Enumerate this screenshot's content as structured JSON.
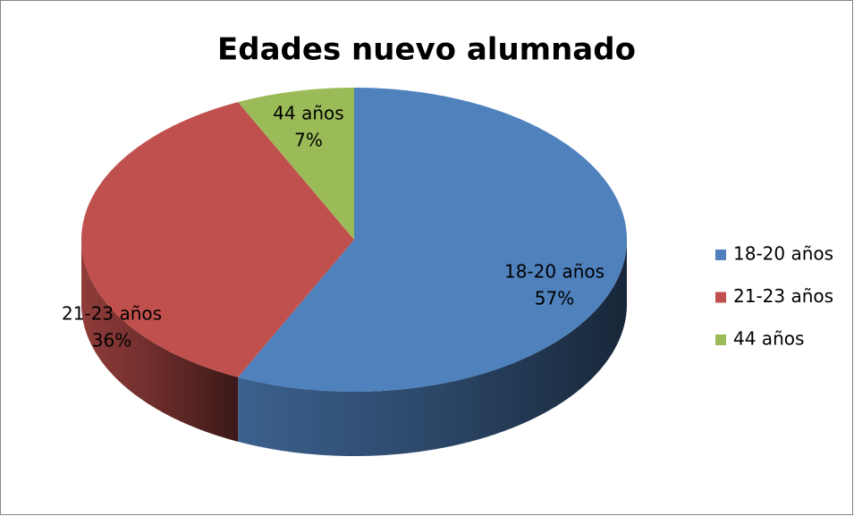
{
  "chart_data": {
    "type": "pie3d",
    "title": "Edades nuevo alumnado",
    "categories": [
      "18-20 años",
      "21-23 años",
      "44 años"
    ],
    "values": [
      57,
      36,
      7
    ],
    "value_labels": [
      "57%",
      "36%",
      "7%"
    ],
    "colors": [
      "#4f81bd",
      "#c0504d",
      "#9bbb59"
    ],
    "legend": "right"
  }
}
